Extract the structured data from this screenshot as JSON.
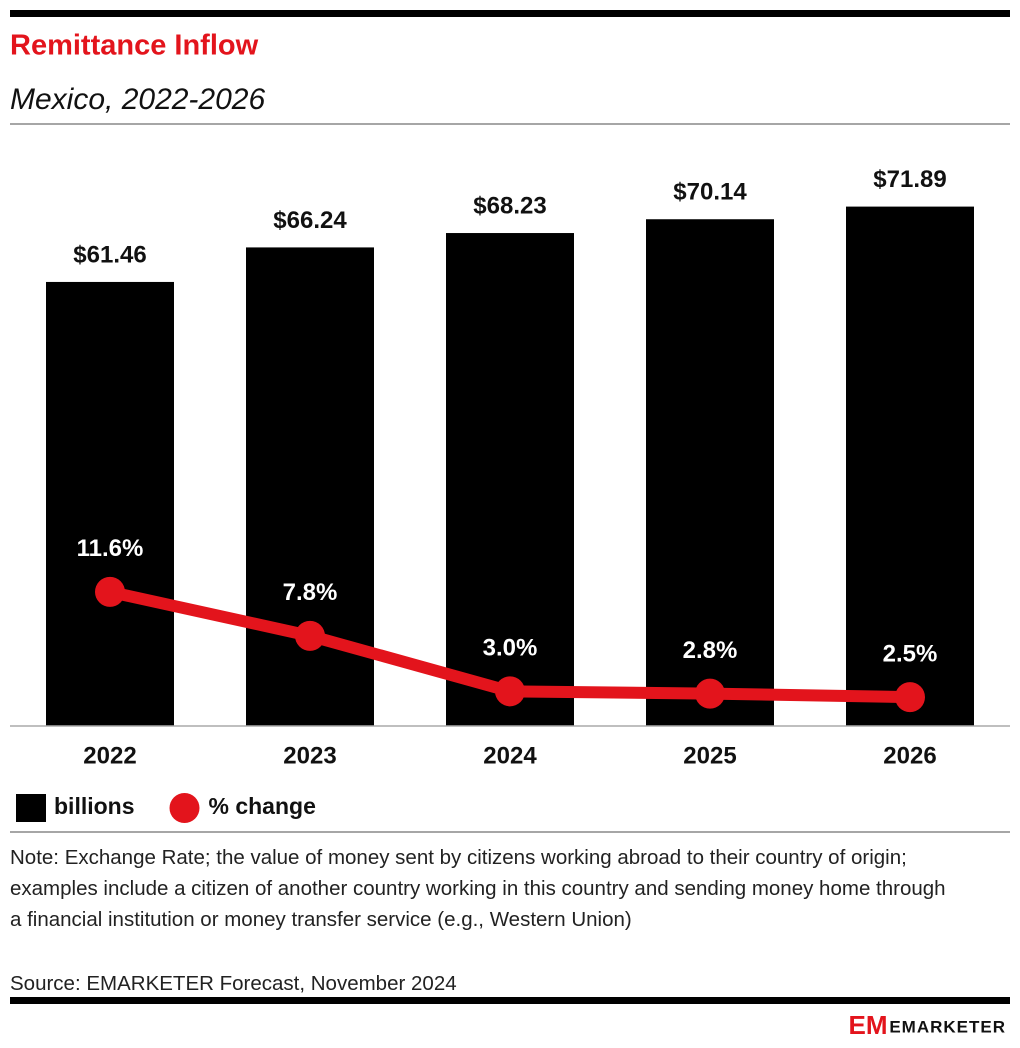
{
  "chart_data": {
    "type": "bar",
    "title": "Remittance Inflow",
    "subtitle": "Mexico, 2022-2026",
    "categories": [
      "2022",
      "2023",
      "2024",
      "2025",
      "2026"
    ],
    "series": [
      {
        "name": "billions",
        "type": "bar",
        "color": "#000000",
        "values": [
          61.46,
          66.24,
          68.23,
          70.14,
          71.89
        ],
        "value_labels": [
          "$61.46",
          "$66.24",
          "$68.23",
          "$70.14",
          "$71.89"
        ]
      },
      {
        "name": "% change",
        "type": "line",
        "axis": "y2",
        "color": "#e3141c",
        "values": [
          11.6,
          7.8,
          3.0,
          2.8,
          2.5
        ],
        "value_labels": [
          "11.6%",
          "7.8%",
          "3.0%",
          "2.8%",
          "2.5%"
        ]
      }
    ],
    "ylim": [
      0,
      80
    ],
    "y2lim": [
      0,
      50
    ],
    "legend": "bottom-left"
  },
  "note": "Note: Exchange Rate; the value of money sent by citizens working abroad to their country of origin; examples include a citizen of another country working in this country and sending money home through a financial institution or money transfer service (e.g., Western Union)",
  "source": "Source: EMARKETER Forecast, November 2024",
  "brand_mark": "EM",
  "brand": "EMARKETER"
}
